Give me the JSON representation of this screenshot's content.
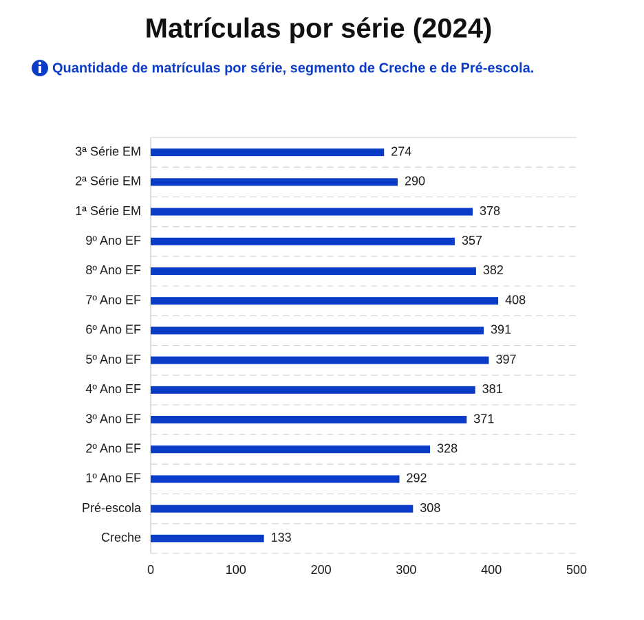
{
  "chart_data": {
    "type": "bar",
    "orientation": "horizontal",
    "title": "Matrículas por série (2024)",
    "subtitle": "Quantidade de matrículas por série, segmento de Creche e de Pré-escola.",
    "categories": [
      "3ª Série EM",
      "2ª Série EM",
      "1ª Série EM",
      "9º Ano EF",
      "8º Ano EF",
      "7º Ano EF",
      "6º Ano EF",
      "5º Ano EF",
      "4º Ano EF",
      "3º Ano EF",
      "2º Ano EF",
      "1º Ano EF",
      "Pré-escola",
      "Creche"
    ],
    "values": [
      274,
      290,
      378,
      357,
      382,
      408,
      391,
      397,
      381,
      371,
      328,
      292,
      308,
      133
    ],
    "color": "#0a3cc8",
    "xlim": [
      0,
      500
    ],
    "xticks": [
      0,
      100,
      200,
      300,
      400,
      500
    ],
    "grid": true
  }
}
